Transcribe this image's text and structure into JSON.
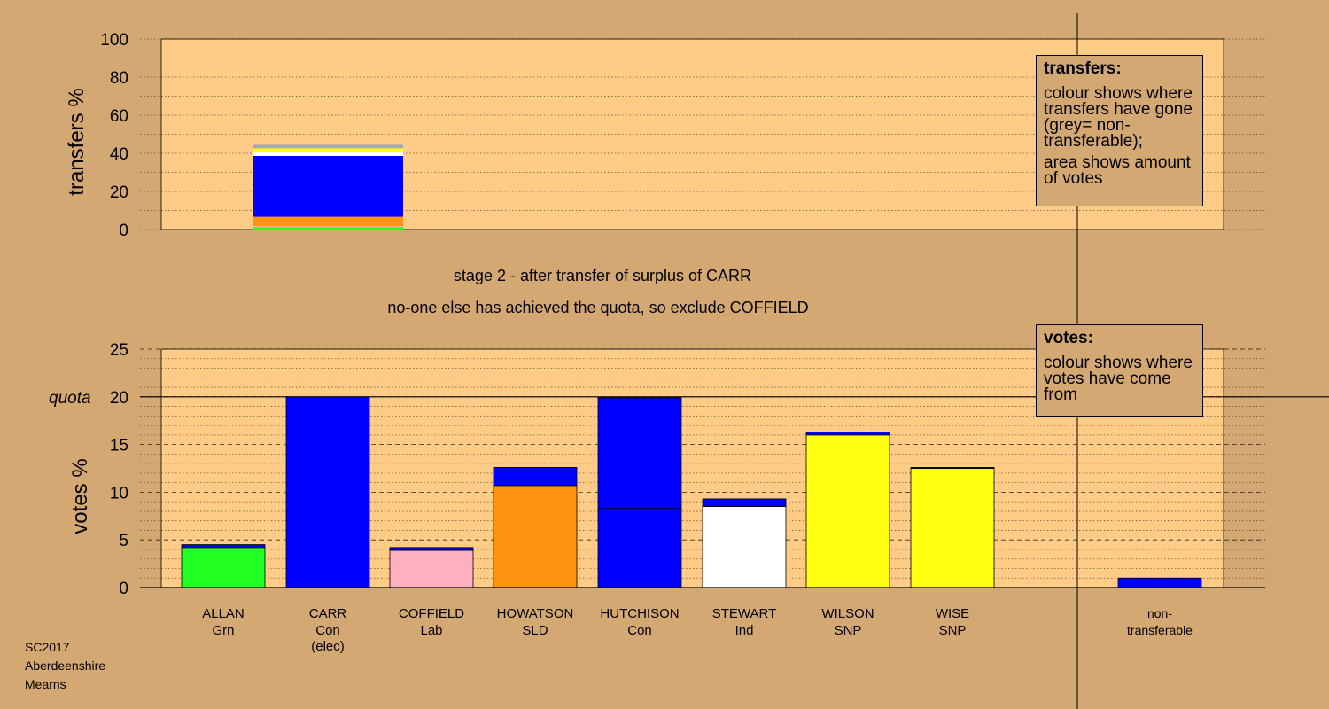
{
  "stage_caption": "stage 2 - after transfer of surplus of CARR",
  "stage_note": "no-one else has achieved the quota, so exclude COFFIELD",
  "footer": [
    "SC2017",
    "Aberdeenshire",
    "Mearns"
  ],
  "transfers_legend": {
    "title": "transfers:",
    "lines": [
      "colour shows where transfers have gone (grey= non-transferable);",
      "area shows amount of votes"
    ]
  },
  "votes_legend": {
    "title": "votes:",
    "lines": [
      "colour shows where votes have come from"
    ]
  },
  "colors": {
    "background": "#d4a873",
    "plot_area": "#ffcc88",
    "Grn": "#22ff22",
    "Con": "#0000ff",
    "Lab": "#ffb0c0",
    "SLD": "#ff9411",
    "Ind": "#ffffff",
    "SNP": "#ffff11",
    "non-transferable": "#aaaaaa"
  },
  "chart_data": [
    {
      "type": "bar",
      "ylabel": "transfers %",
      "ylim": [
        0,
        100
      ],
      "yticks": [
        0,
        20,
        40,
        60,
        80,
        100
      ],
      "grid": true,
      "bars": [
        {
          "candidate": "CARR",
          "segments": [
            {
              "to": "ALLAN",
              "party": "Grn",
              "value": 1.3
            },
            {
              "to": "COFFIELD",
              "party": "Lab",
              "value": 0.5
            },
            {
              "to": "HOWATSON",
              "party": "SLD",
              "value": 4.9
            },
            {
              "to": "HUTCHISON",
              "party": "Con",
              "value": 31.9
            },
            {
              "to": "STEWART",
              "party": "Ind",
              "value": 2.2
            },
            {
              "to": "WILSON",
              "party": "SNP",
              "value": 1.3
            },
            {
              "to": "WISE",
              "party": "SNP",
              "value": 0.5
            },
            {
              "to": "non-transferable",
              "party": "non-transferable",
              "value": 1.9
            }
          ]
        }
      ]
    },
    {
      "type": "bar",
      "ylabel": "votes %",
      "ylim": [
        0,
        25
      ],
      "yticks": [
        0,
        5,
        10,
        15,
        20,
        25
      ],
      "quota": 20,
      "quota_label": "quota",
      "grid": true,
      "categories": [
        {
          "name": "ALLAN",
          "party": "Grn"
        },
        {
          "name": "CARR",
          "party": "Con",
          "note": "(elec)"
        },
        {
          "name": "COFFIELD",
          "party": "Lab"
        },
        {
          "name": "HOWATSON",
          "party": "SLD"
        },
        {
          "name": "HUTCHISON",
          "party": "Con"
        },
        {
          "name": "STEWART",
          "party": "Ind"
        },
        {
          "name": "WILSON",
          "party": "SNP"
        },
        {
          "name": "WISE",
          "party": "SNP"
        },
        {
          "name": "non-",
          "party": "transferable"
        }
      ],
      "bars": [
        {
          "candidate": "ALLAN",
          "segments": [
            {
              "from": "ALLAN",
              "party": "Grn",
              "value": 4.2
            },
            {
              "from": "CARR",
              "party": "Con",
              "value": 0.3
            }
          ]
        },
        {
          "candidate": "CARR",
          "segments": [
            {
              "from": "CARR",
              "party": "Con",
              "value": 20.0
            }
          ]
        },
        {
          "candidate": "COFFIELD",
          "segments": [
            {
              "from": "COFFIELD",
              "party": "Lab",
              "value": 3.9
            },
            {
              "from": "CARR",
              "party": "Con",
              "value": 0.3
            }
          ]
        },
        {
          "candidate": "HOWATSON",
          "segments": [
            {
              "from": "HOWATSON",
              "party": "SLD",
              "value": 10.7
            },
            {
              "from": "CARR",
              "party": "Con",
              "value": 1.9
            }
          ]
        },
        {
          "candidate": "HUTCHISON",
          "segments": [
            {
              "from": "HUTCHISON",
              "party": "Con",
              "value": 8.3
            },
            {
              "from": "CARR",
              "party": "Con",
              "value": 11.6
            }
          ]
        },
        {
          "candidate": "STEWART",
          "segments": [
            {
              "from": "STEWART",
              "party": "Ind",
              "value": 8.5
            },
            {
              "from": "CARR",
              "party": "Con",
              "value": 0.8
            }
          ]
        },
        {
          "candidate": "WILSON",
          "segments": [
            {
              "from": "WILSON",
              "party": "SNP",
              "value": 16.0
            },
            {
              "from": "CARR",
              "party": "Con",
              "value": 0.3
            }
          ]
        },
        {
          "candidate": "WISE",
          "segments": [
            {
              "from": "WISE",
              "party": "SNP",
              "value": 12.5
            },
            {
              "from": "CARR",
              "party": "Con",
              "value": 0.1
            }
          ]
        },
        {
          "candidate": "non-transferable",
          "segments": [
            {
              "from": "CARR",
              "party": "Con",
              "value": 1.0
            }
          ]
        }
      ]
    }
  ]
}
